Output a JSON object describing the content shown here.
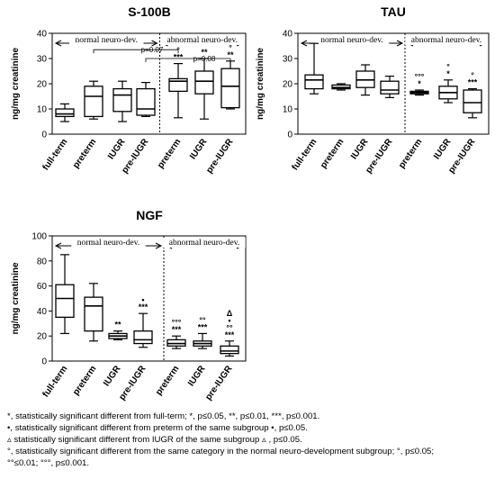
{
  "chart_data": [
    {
      "type": "boxplot",
      "title": "S-100B",
      "ylabel": "ng/mg creatinine",
      "ylim": [
        0,
        40
      ],
      "yticks": [
        0,
        10,
        20,
        30,
        40
      ],
      "groups": [
        {
          "label": "normal neuro-dev.",
          "categories": [
            "full-term",
            "preterm",
            "IUGR",
            "pre-IUGR"
          ]
        },
        {
          "label": "abnormal neuro-dev.",
          "categories": [
            "preterm",
            "IUGR",
            "pre-IUGR"
          ]
        }
      ],
      "boxes": [
        {
          "category": "full-term",
          "min": 5,
          "q1": 7,
          "median": 8,
          "q3": 10,
          "max": 12,
          "marks": []
        },
        {
          "category": "preterm",
          "min": 6,
          "q1": 7,
          "median": 15,
          "q3": 19,
          "max": 21,
          "marks": []
        },
        {
          "category": "IUGR",
          "min": 5,
          "q1": 9,
          "median": 15.5,
          "q3": 18,
          "max": 21,
          "marks": []
        },
        {
          "category": "pre-IUGR",
          "min": 7,
          "q1": 7.5,
          "median": 10,
          "q3": 18,
          "max": 20.5,
          "marks": []
        },
        {
          "category": "preterm",
          "min": 6.5,
          "q1": 17,
          "median": 21,
          "q3": 22,
          "max": 28,
          "marks": [
            "°",
            "***"
          ]
        },
        {
          "category": "IUGR",
          "min": 6,
          "q1": 16,
          "median": 21,
          "q3": 25,
          "max": 30,
          "marks": [
            "**"
          ]
        },
        {
          "category": "pre-IUGR",
          "min": 10,
          "q1": 10.5,
          "median": 19,
          "q3": 26,
          "max": 29,
          "marks": [
            "°",
            "**"
          ]
        }
      ],
      "annotations": [
        {
          "text": "p=0.07",
          "from": "preterm",
          "to": "preterm (abnormal)"
        },
        {
          "text": "p=0.08",
          "from": "pre-IUGR",
          "to": "pre-IUGR (abnormal)"
        }
      ]
    },
    {
      "type": "boxplot",
      "title": "TAU",
      "ylabel": "ng/mg creatinine",
      "ylim": [
        0,
        40
      ],
      "yticks": [
        0,
        10,
        20,
        30,
        40
      ],
      "groups": [
        {
          "label": "normal neuro-dev.",
          "categories": [
            "full-term",
            "preterm",
            "IUGR",
            "pre-IUGR"
          ]
        },
        {
          "label": "abnormal neuro-dev.",
          "categories": [
            "preterm",
            "IUGR",
            "pre-IUGR"
          ]
        }
      ],
      "boxes": [
        {
          "category": "full-term",
          "min": 16,
          "q1": 18,
          "median": 21.5,
          "q3": 23.5,
          "max": 36,
          "marks": []
        },
        {
          "category": "preterm",
          "min": 17.5,
          "q1": 18,
          "median": 18.5,
          "q3": 19.5,
          "max": 20,
          "marks": []
        },
        {
          "category": "IUGR",
          "min": 15.5,
          "q1": 18.5,
          "median": 21.5,
          "q3": 25,
          "max": 27.5,
          "marks": []
        },
        {
          "category": "pre-IUGR",
          "min": 14.5,
          "q1": 16,
          "median": 17.5,
          "q3": 21,
          "max": 23,
          "marks": []
        },
        {
          "category": "preterm",
          "min": 15.5,
          "q1": 16,
          "median": 16.5,
          "q3": 17,
          "max": 17.5,
          "marks": [
            "°°°",
            "*"
          ]
        },
        {
          "category": "IUGR",
          "min": 12.5,
          "q1": 14,
          "median": 16.5,
          "q3": 19,
          "max": 21.5,
          "marks": [
            "°",
            "*"
          ]
        },
        {
          "category": "pre-IUGR",
          "min": 6.5,
          "q1": 8.5,
          "median": 12.5,
          "q3": 17.5,
          "max": 18,
          "marks": [
            "°",
            "***"
          ]
        }
      ],
      "annotations": []
    },
    {
      "type": "boxplot",
      "title": "NGF",
      "ylabel": "ng/mg creatinine",
      "ylim": [
        0,
        100
      ],
      "yticks": [
        0,
        20,
        40,
        60,
        80,
        100
      ],
      "groups": [
        {
          "label": "normal neuro-dev.",
          "categories": [
            "full-term",
            "preterm",
            "IUGR",
            "pre-IUGR"
          ]
        },
        {
          "label": "abnormal neuro-dev.",
          "categories": [
            "preterm",
            "IUGR",
            "pre-IUGR"
          ]
        }
      ],
      "boxes": [
        {
          "category": "full-term",
          "min": 22,
          "q1": 35,
          "median": 50,
          "q3": 61,
          "max": 85,
          "marks": []
        },
        {
          "category": "preterm",
          "min": 16,
          "q1": 24,
          "median": 44,
          "q3": 51,
          "max": 62,
          "marks": []
        },
        {
          "category": "IUGR",
          "min": 17,
          "q1": 18,
          "median": 20,
          "q3": 22,
          "max": 24,
          "marks": [
            "**"
          ]
        },
        {
          "category": "pre-IUGR",
          "min": 11,
          "q1": 14,
          "median": 17,
          "q3": 24,
          "max": 38,
          "marks": [
            "•",
            "***"
          ]
        },
        {
          "category": "preterm",
          "min": 10,
          "q1": 12,
          "median": 14,
          "q3": 17,
          "max": 20,
          "marks": [
            "°°°",
            "***"
          ]
        },
        {
          "category": "IUGR",
          "min": 10,
          "q1": 12,
          "median": 14,
          "q3": 16,
          "max": 22,
          "marks": [
            "°°",
            "***"
          ]
        },
        {
          "category": "pre-IUGR",
          "min": 4,
          "q1": 6,
          "median": 8,
          "q3": 12,
          "max": 16,
          "marks": [
            "Δ",
            "•",
            "°°",
            "***"
          ]
        }
      ],
      "annotations": []
    }
  ],
  "footnotes": [
    "*, statistically significant different from full-term; *, p≤0.05, **, p≤0.01, ***, p≤0.001.",
    "•, statistically significant different from preterm of the same subgroup  •, p≤0.05.",
    "▵ statistically significant different from IUGR of the same subgroup ▵ , p≤0.05.",
    "°, statistically significant different from the same category in the normal neuro-development subgroup; °, p≤0.05;",
    "°°≤0.01; °°°, p≤0.001."
  ]
}
